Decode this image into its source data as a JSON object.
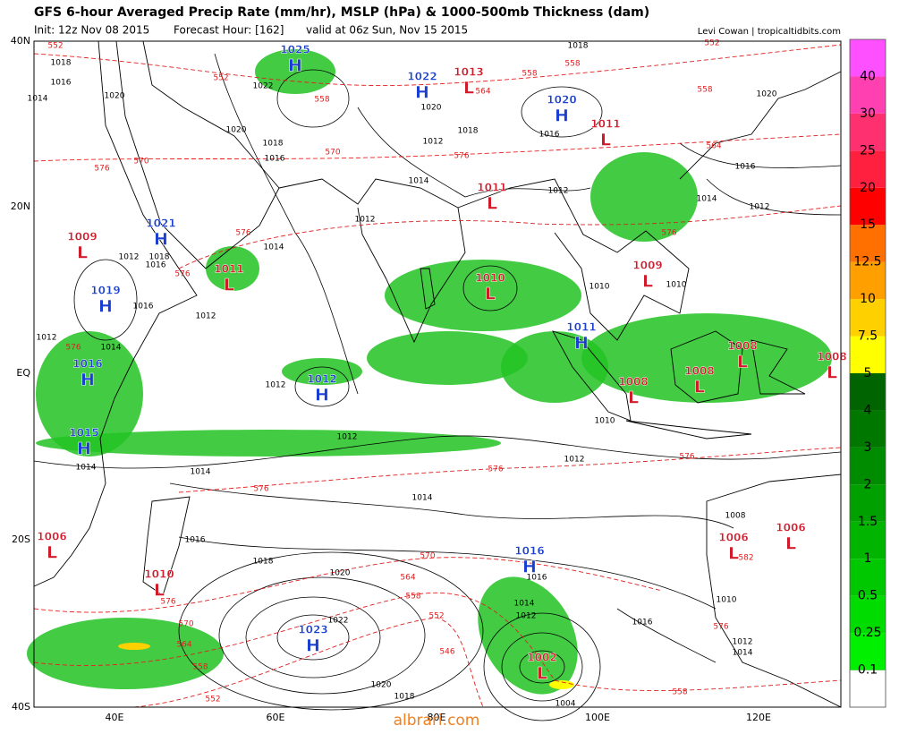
{
  "header": {
    "title": "GFS 6-hour Averaged Precip Rate (mm/hr), MSLP (hPa) & 1000-500mb Thickness (dam)",
    "init": "Init: 12z Nov 08 2015",
    "forecast_hour": "Forecast Hour: [162]",
    "valid": "valid at 06z Sun, Nov 15 2015",
    "credit": "Levi Cowan | tropicaltidbits.com"
  },
  "axes": {
    "lat_labels": [
      "40N",
      "20N",
      "EQ",
      "20S",
      "40S"
    ],
    "lon_labels": [
      "40E",
      "60E",
      "80E",
      "100E",
      "120E"
    ]
  },
  "pressure_centers": [
    {
      "type": "H",
      "value": 1025
    },
    {
      "type": "H",
      "value": 1022
    },
    {
      "type": "L",
      "value": 1013
    },
    {
      "type": "H",
      "value": 1020
    },
    {
      "type": "L",
      "value": 1011
    },
    {
      "type": "L",
      "value": 1011
    },
    {
      "type": "H",
      "value": 1021
    },
    {
      "type": "L",
      "value": 1009
    },
    {
      "type": "L",
      "value": 1011
    },
    {
      "type": "H",
      "value": 1019
    },
    {
      "type": "L",
      "value": 1010
    },
    {
      "type": "L",
      "value": 1009
    },
    {
      "type": "H",
      "value": 1011
    },
    {
      "type": "L",
      "value": 1008
    },
    {
      "type": "L",
      "value": 1008
    },
    {
      "type": "L",
      "value": 1008
    },
    {
      "type": "L",
      "value": 1008
    },
    {
      "type": "H",
      "value": 1016
    },
    {
      "type": "H",
      "value": 1012
    },
    {
      "type": "H",
      "value": 1015
    },
    {
      "type": "L",
      "value": 1006
    },
    {
      "type": "L",
      "value": 1010
    },
    {
      "type": "H",
      "value": 1016
    },
    {
      "type": "L",
      "value": 1006
    },
    {
      "type": "L",
      "value": 1006
    },
    {
      "type": "H",
      "value": 1023
    },
    {
      "type": "L",
      "value": 1002
    }
  ],
  "isobar_labels": [
    1018,
    1016,
    1014,
    1020,
    1022,
    1020,
    1018,
    1016,
    1014,
    1012,
    1014,
    1012,
    1016,
    1014,
    1012,
    1012,
    1012,
    1014,
    1014,
    1016,
    1018,
    1020,
    1022,
    1020,
    1018,
    1016,
    1014,
    1012,
    1016,
    1012,
    1010,
    1010,
    1010,
    1008,
    1010,
    1012,
    1014,
    1004,
    1012,
    1012,
    1016,
    1018,
    1020,
    1014,
    1012,
    1016,
    1018,
    1020,
    1018,
    1016,
    1012,
    1014
  ],
  "thickness_labels": [
    552,
    552,
    558,
    570,
    576,
    570,
    576,
    564,
    558,
    558,
    558,
    552,
    564,
    576,
    576,
    576,
    576,
    576,
    576,
    576,
    570,
    564,
    558,
    552,
    546,
    564,
    570,
    558,
    552,
    558,
    576,
    582,
    576
  ],
  "colorbar": {
    "bottom_color": "#ffffff",
    "levels": [
      {
        "value": 0.1,
        "color": "#00f000"
      },
      {
        "value": 0.25,
        "color": "#00dc00"
      },
      {
        "value": 0.5,
        "color": "#00c800"
      },
      {
        "value": 1,
        "color": "#00b400"
      },
      {
        "value": 1.5,
        "color": "#00a000"
      },
      {
        "value": 2,
        "color": "#008c00"
      },
      {
        "value": 3,
        "color": "#007800"
      },
      {
        "value": 4,
        "color": "#006400"
      },
      {
        "value": 5,
        "color": "#ffff00"
      },
      {
        "value": 7.5,
        "color": "#ffd000"
      },
      {
        "value": 10,
        "color": "#ffa000"
      },
      {
        "value": 12.5,
        "color": "#ff7000"
      },
      {
        "value": 15,
        "color": "#ff0000"
      },
      {
        "value": 20,
        "color": "#ff2040"
      },
      {
        "value": 25,
        "color": "#ff3070"
      },
      {
        "value": 30,
        "color": "#ff40b0"
      },
      {
        "value": 40,
        "color": "#ff50ff"
      }
    ]
  },
  "watermark": "albrari.com"
}
